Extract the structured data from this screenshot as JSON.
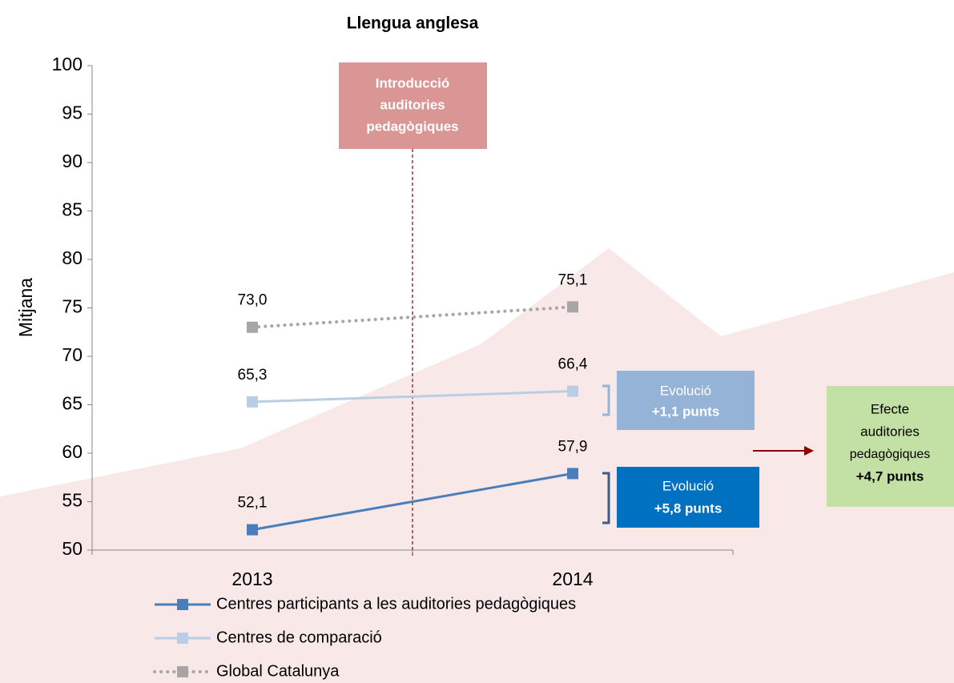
{
  "chart_data": {
    "type": "line",
    "title": "Llengua anglesa",
    "ylabel": "Mitjana",
    "categories": [
      "2013",
      "2014"
    ],
    "series": [
      {
        "name": "Centres participants a les auditories pedagògiques",
        "color": "#4a7ebb",
        "style": "solid",
        "values": [
          52.1,
          57.9
        ],
        "value_labels": [
          "52,1",
          "57,9"
        ]
      },
      {
        "name": "Centres de comparació",
        "color": "#b9cde5",
        "style": "solid",
        "values": [
          65.3,
          66.4
        ],
        "value_labels": [
          "65,3",
          "66,4"
        ]
      },
      {
        "name": "Global Catalunya",
        "color": "#a6a6a6",
        "style": "dotted",
        "values": [
          73.0,
          75.1
        ],
        "value_labels": [
          "73,0",
          "75,1"
        ]
      }
    ],
    "ylim": [
      50,
      100
    ],
    "yticks": [
      50,
      55,
      60,
      65,
      70,
      75,
      80,
      85,
      90,
      95,
      100
    ],
    "grid": false,
    "legend": "bottom",
    "annotations": [
      {
        "lines": [
          "Introducció",
          "auditories",
          "pedagògiques"
        ]
      },
      {
        "lines": [
          "Evolució",
          "+1,1 punts"
        ]
      },
      {
        "lines": [
          "Evolució",
          "+5,8 punts"
        ]
      },
      {
        "lines": [
          "Efecte",
          "auditories",
          "pedagògiques",
          "+4,7 punts"
        ]
      }
    ]
  }
}
